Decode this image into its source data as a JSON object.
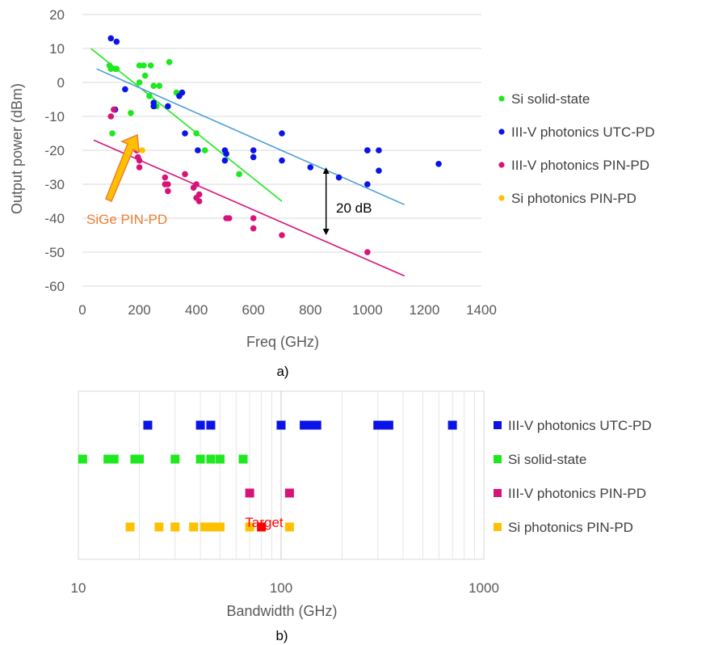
{
  "chart_data": [
    {
      "type": "scatter",
      "caption": "a)",
      "xlabel": "Freq (GHz)",
      "ylabel": "Output power (dBm)",
      "xlim": [
        0,
        1400
      ],
      "ylim": [
        -60,
        20
      ],
      "xticks": [
        "0",
        "200",
        "400",
        "600",
        "800",
        "1000",
        "1200",
        "1400"
      ],
      "yticks": [
        "20",
        "10",
        "0",
        "-10",
        "-20",
        "-30",
        "-40",
        "-50",
        "-60"
      ],
      "grid": "horizontal",
      "legend_position": "right",
      "series": [
        {
          "name": "Si solid-state",
          "color": "#1ee81e",
          "points": [
            [
              95,
              5
            ],
            [
              100,
              4
            ],
            [
              105,
              -15
            ],
            [
              115,
              4
            ],
            [
              120,
              4
            ],
            [
              170,
              -9
            ],
            [
              200,
              0
            ],
            [
              200,
              5
            ],
            [
              215,
              5
            ],
            [
              220,
              2
            ],
            [
              235,
              -4
            ],
            [
              240,
              5
            ],
            [
              250,
              -1
            ],
            [
              260,
              -7
            ],
            [
              270,
              -1
            ],
            [
              305,
              6
            ],
            [
              330,
              -3
            ],
            [
              400,
              -15
            ],
            [
              430,
              -20
            ],
            [
              550,
              -27
            ]
          ],
          "trend": [
            [
              30,
              10
            ],
            [
              700,
              -35
            ]
          ]
        },
        {
          "name": "III-V photonics UTC-PD",
          "color": "#0a14e6",
          "points": [
            [
              100,
              13
            ],
            [
              120,
              12
            ],
            [
              115,
              -8
            ],
            [
              150,
              -2
            ],
            [
              250,
              -6
            ],
            [
              250,
              -7
            ],
            [
              300,
              -7
            ],
            [
              340,
              -4
            ],
            [
              350,
              -3
            ],
            [
              360,
              -15
            ],
            [
              405,
              -20
            ],
            [
              500,
              -20
            ],
            [
              505,
              -21
            ],
            [
              500,
              -23
            ],
            [
              600,
              -20
            ],
            [
              600,
              -22
            ],
            [
              700,
              -15
            ],
            [
              700,
              -23
            ],
            [
              800,
              -25
            ],
            [
              900,
              -28
            ],
            [
              1000,
              -20
            ],
            [
              1000,
              -20
            ],
            [
              1000,
              -30
            ],
            [
              1040,
              -20
            ],
            [
              1040,
              -26
            ],
            [
              1250,
              -24
            ]
          ],
          "trend": [
            [
              50,
              4
            ],
            [
              1130,
              -36
            ]
          ]
        },
        {
          "name": "III-V photonics PIN-PD",
          "color": "#d81378",
          "points": [
            [
              100,
              -10
            ],
            [
              110,
              -8
            ],
            [
              160,
              -20
            ],
            [
              190,
              -20
            ],
            [
              195,
              -22
            ],
            [
              200,
              -23
            ],
            [
              200,
              -25
            ],
            [
              290,
              -28
            ],
            [
              290,
              -30
            ],
            [
              300,
              -30
            ],
            [
              300,
              -32
            ],
            [
              360,
              -27
            ],
            [
              390,
              -31
            ],
            [
              400,
              -30
            ],
            [
              400,
              -34
            ],
            [
              410,
              -33
            ],
            [
              410,
              -35
            ],
            [
              505,
              -40
            ],
            [
              515,
              -40
            ],
            [
              600,
              -40
            ],
            [
              600,
              -43
            ],
            [
              700,
              -45
            ],
            [
              1000,
              -50
            ]
          ],
          "trend": [
            [
              40,
              -17
            ],
            [
              1130,
              -57
            ]
          ]
        },
        {
          "name": "Si photonics PIN-PD",
          "color": "#ffc000",
          "points": [
            [
              210,
              -20
            ]
          ]
        }
      ],
      "annotations": {
        "arrow_label": "20 dB",
        "arrow_x": 855,
        "arrow_from": -25,
        "arrow_to": -45,
        "sige_label": "SiGe PIN-PD",
        "sige_label_color": "#ed7d31"
      }
    },
    {
      "type": "scatter",
      "caption": "b)",
      "xlabel": "Bandwidth (GHz)",
      "xscale": "log",
      "xlim": [
        10,
        1000
      ],
      "xticks": [
        "10",
        "100",
        "1000"
      ],
      "grid": "vertical",
      "legend_position": "right",
      "series": [
        {
          "name": "III-V photonics UTC-PD",
          "color": "#0a14e6",
          "values": [
            22,
            40,
            45,
            100,
            130,
            140,
            150,
            300,
            320,
            340,
            700
          ]
        },
        {
          "name": "Si solid-state",
          "color": "#1ee81e",
          "values": [
            10.5,
            14,
            15,
            19,
            20,
            30,
            40,
            45,
            50,
            65
          ]
        },
        {
          "name": "III-V photonics PIN-PD",
          "color": "#d81378",
          "values": [
            70,
            110
          ]
        },
        {
          "name": "Si photonics PIN-PD",
          "color": "#ffc000",
          "values": [
            18,
            25,
            30,
            37,
            42,
            46,
            50,
            70,
            110
          ]
        }
      ],
      "target": {
        "value": 80,
        "label": "Target",
        "color": "#ff0000"
      }
    }
  ]
}
